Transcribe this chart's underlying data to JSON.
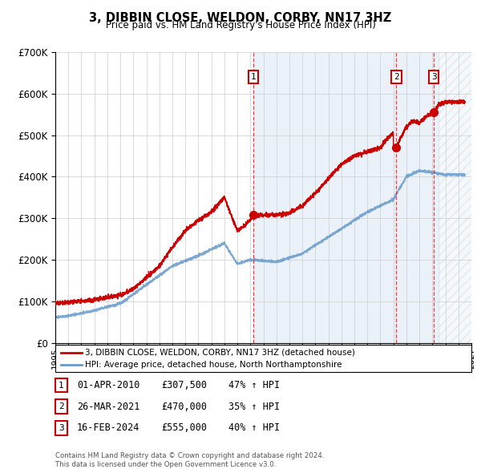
{
  "title": "3, DIBBIN CLOSE, WELDON, CORBY, NN17 3HZ",
  "subtitle": "Price paid vs. HM Land Registry's House Price Index (HPI)",
  "legend_line1": "3, DIBBIN CLOSE, WELDON, CORBY, NN17 3HZ (detached house)",
  "legend_line2": "HPI: Average price, detached house, North Northamptonshire",
  "footer1": "Contains HM Land Registry data © Crown copyright and database right 2024.",
  "footer2": "This data is licensed under the Open Government Licence v3.0.",
  "transactions": [
    {
      "num": 1,
      "date": "01-APR-2010",
      "price": 307500,
      "price_str": "£307,500",
      "pct": "47%",
      "dir": "↑",
      "year": 2010.25
    },
    {
      "num": 2,
      "date": "26-MAR-2021",
      "price": 470000,
      "price_str": "£470,000",
      "pct": "35%",
      "dir": "↑",
      "year": 2021.23
    },
    {
      "num": 3,
      "date": "16-FEB-2024",
      "price": 555000,
      "price_str": "£555,000",
      "pct": "40%",
      "dir": "↑",
      "year": 2024.12
    }
  ],
  "red_color": "#cc0000",
  "blue_color": "#6699cc",
  "bg_shaded": "#dce9f5",
  "hatch_color": "#b0c8dc",
  "grid_color": "#cccccc",
  "xmin": 1995,
  "xmax": 2027,
  "ymin": 0,
  "ymax": 700000,
  "shade_start": 2010.25,
  "shade_solid_end": 2024.5,
  "shade_hatch_end": 2027
}
